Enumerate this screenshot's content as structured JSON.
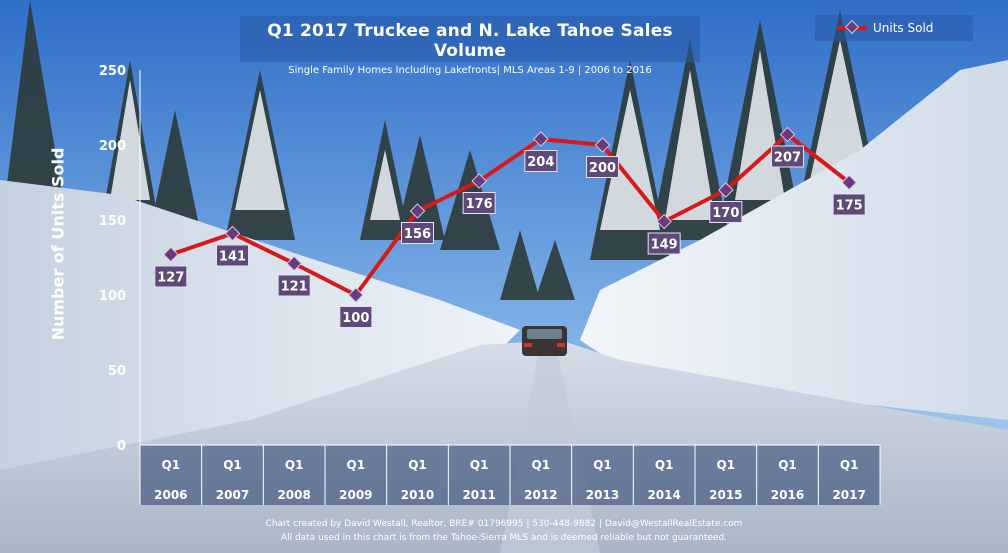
{
  "chart_data": {
    "type": "line",
    "title": "Q1 2017 Truckee  and  N. Lake Tahoe Sales Volume",
    "subtitle": "Single Family Homes Including Lakefronts| MLS Areas 1-9 | 2006 to 2016",
    "ylabel": "Number of Units Sold",
    "xlabel": "",
    "ylim": [
      0,
      250
    ],
    "yticks": [
      "0",
      "50",
      "100",
      "150",
      "200",
      "250"
    ],
    "categories": [
      {
        "top": "Q1",
        "bottom": "2006"
      },
      {
        "top": "Q1",
        "bottom": "2007"
      },
      {
        "top": "Q1",
        "bottom": "2008"
      },
      {
        "top": "Q1",
        "bottom": "2009"
      },
      {
        "top": "Q1",
        "bottom": "2010"
      },
      {
        "top": "Q1",
        "bottom": "2011"
      },
      {
        "top": "Q1",
        "bottom": "2012"
      },
      {
        "top": "Q1",
        "bottom": "2013"
      },
      {
        "top": "Q1",
        "bottom": "2014"
      },
      {
        "top": "Q1",
        "bottom": "2015"
      },
      {
        "top": "Q1",
        "bottom": "2016"
      },
      {
        "top": "Q1",
        "bottom": "2017"
      }
    ],
    "series": [
      {
        "name": "Units Sold",
        "values": [
          127,
          141,
          121,
          100,
          156,
          176,
          204,
          200,
          149,
          170,
          207,
          175
        ],
        "color": "#d61a1a",
        "marker_color": "#6b3a7a"
      }
    ],
    "legend_position": "top-right",
    "grid": false
  },
  "footer": {
    "line1": "Chart created by David Westall, Realtor, BRE# 01796995 | 530-448-9882 | David@WestallRealEstate.com",
    "line2": "All data used in this chart is from the Tahoe-Sierra MLS and is deemed reliable but  not guaranteed."
  }
}
